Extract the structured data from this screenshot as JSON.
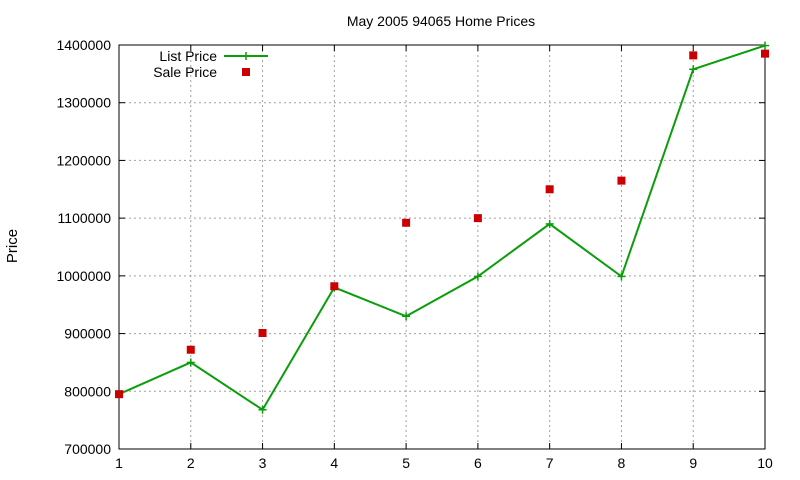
{
  "colors": {
    "list_price": "#0a9e0a",
    "sale_price": "#cc0000",
    "grid": "#a0a0a0"
  },
  "chart_data": {
    "type": "line",
    "title": "May 2005 94065 Home Prices",
    "xlabel": "",
    "ylabel": "Price",
    "x": [
      1,
      2,
      3,
      4,
      5,
      6,
      7,
      8,
      9,
      10
    ],
    "xlim": [
      1,
      10
    ],
    "ylim": [
      700000,
      1400000
    ],
    "xticks": [
      1,
      2,
      3,
      4,
      5,
      6,
      7,
      8,
      9,
      10
    ],
    "yticks": [
      700000,
      800000,
      900000,
      1000000,
      1100000,
      1200000,
      1300000,
      1400000
    ],
    "grid": true,
    "legend_position": "top-left",
    "series": [
      {
        "name": "List Price",
        "style": "line-with-plus-markers",
        "color": "#0a9e0a",
        "x": [
          1,
          2,
          3,
          4,
          5,
          6,
          7,
          8,
          9,
          10
        ],
        "values": [
          795000,
          850000,
          768000,
          980000,
          930000,
          999000,
          1090000,
          999000,
          1358000,
          1399000
        ]
      },
      {
        "name": "Sale Price",
        "style": "square-markers",
        "color": "#cc0000",
        "x": [
          1,
          2,
          3,
          4,
          5,
          6,
          7,
          8,
          9,
          10
        ],
        "values": [
          795000,
          872000,
          901000,
          982000,
          1092000,
          1100000,
          1150000,
          1165000,
          1382000,
          1385000
        ]
      }
    ]
  }
}
